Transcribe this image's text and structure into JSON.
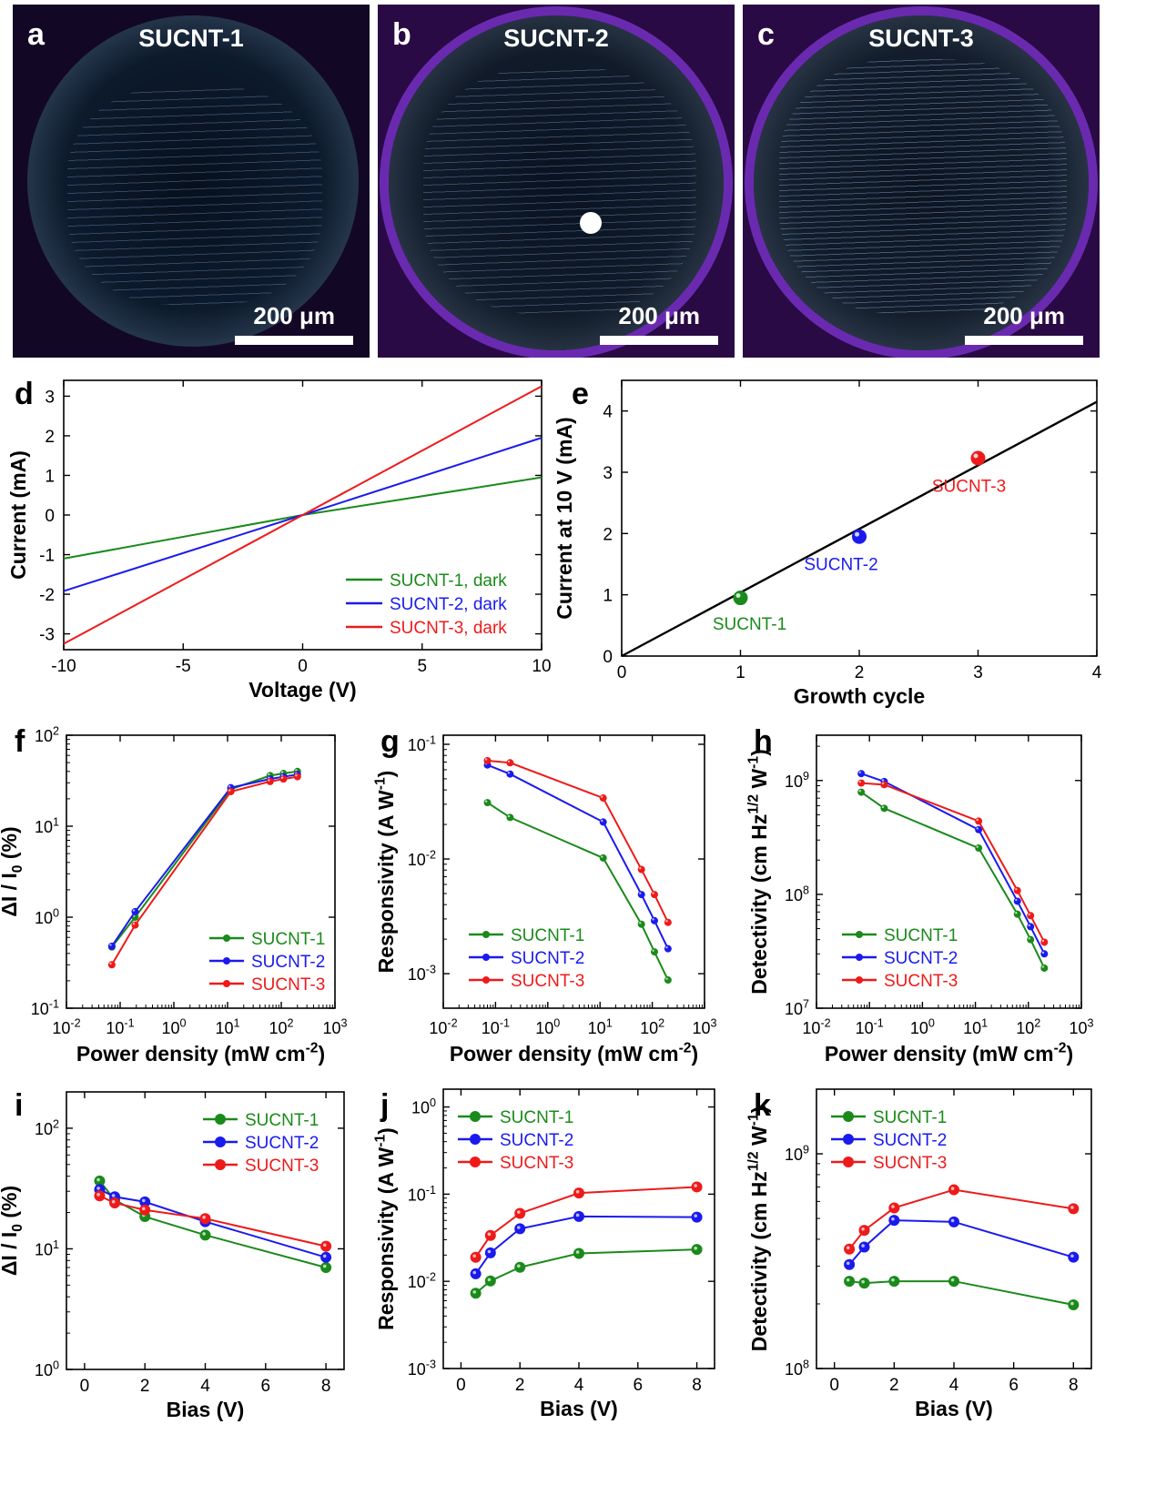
{
  "panel_letters": {
    "a": "a",
    "b": "b",
    "c": "c",
    "d": "d",
    "e": "e",
    "f": "f",
    "g": "g",
    "h": "h",
    "i": "i",
    "j": "j",
    "k": "k"
  },
  "photos": [
    {
      "title": "SUCNT-1",
      "scale": "200 μm"
    },
    {
      "title": "SUCNT-2",
      "scale": "200 μm"
    },
    {
      "title": "SUCNT-3",
      "scale": "200 μm"
    }
  ],
  "colors": {
    "sucnt1": "#1a8a1a",
    "sucnt2": "#1a1aee",
    "sucnt3": "#ee1a1a",
    "fit": "#000000"
  },
  "chart_data": [
    {
      "panel": "d",
      "type": "line",
      "xlabel": "Voltage (V)",
      "ylabel": "Current (mA)",
      "xlim": [
        -10,
        10
      ],
      "ylim": [
        -3.4,
        3.4
      ],
      "xticks": [
        -10,
        -5,
        0,
        5,
        10
      ],
      "yticks": [
        -3,
        -2,
        -1,
        0,
        1,
        2,
        3
      ],
      "legend_position": "bottom-right",
      "series": [
        {
          "name": "SUCNT-1, dark",
          "color": "#1a8a1a",
          "x": [
            -10,
            0,
            10
          ],
          "y": [
            -1.1,
            0,
            0.95
          ]
        },
        {
          "name": "SUCNT-2, dark",
          "color": "#1a1aee",
          "x": [
            -10,
            0,
            10
          ],
          "y": [
            -1.92,
            0,
            1.95
          ]
        },
        {
          "name": "SUCNT-3, dark",
          "color": "#ee1a1a",
          "x": [
            -10,
            0,
            10
          ],
          "y": [
            -3.25,
            0,
            3.25
          ]
        }
      ]
    },
    {
      "panel": "e",
      "type": "scatter",
      "xlabel": "Growth cycle",
      "ylabel": "Current at 10 V (mA)",
      "xlim": [
        0,
        4
      ],
      "ylim": [
        0,
        4.5
      ],
      "xticks": [
        0,
        1,
        2,
        3,
        4
      ],
      "yticks": [
        0,
        1,
        2,
        3,
        4
      ],
      "fit_line": {
        "x": [
          0,
          4
        ],
        "y": [
          0,
          4.15
        ]
      },
      "points": [
        {
          "label": "SUCNT-1",
          "color": "#1a8a1a",
          "x": 1,
          "y": 0.95
        },
        {
          "label": "SUCNT-2",
          "color": "#1a1aee",
          "x": 2,
          "y": 1.95
        },
        {
          "label": "SUCNT-3",
          "color": "#ee1a1a",
          "x": 3,
          "y": 3.23
        }
      ]
    },
    {
      "panel": "f",
      "type": "line",
      "xscale": "log",
      "yscale": "log",
      "xlabel": "Power density (mW cm",
      "xlabel_sup": "-2",
      "xlabel_tail": ")",
      "ylabel": "ΔI / I",
      "ylabel_sub": "0",
      "ylabel_tail": " (%)",
      "xlim": [
        0.01,
        1000
      ],
      "ylim": [
        0.1,
        100
      ],
      "xticks": [
        "10^-2",
        "10^-1",
        "10^0",
        "10^1",
        "10^2",
        "10^3"
      ],
      "yticks": [
        "10^-1",
        "10^0",
        "10^1",
        "10^2"
      ],
      "legend_position": "lower-right",
      "series": [
        {
          "name": "SUCNT-1",
          "color": "#1a8a1a",
          "x": [
            0.07,
            0.19,
            11.5,
            62,
            110,
            200
          ],
          "y": [
            0.47,
            1.0,
            25.5,
            36,
            38,
            40
          ]
        },
        {
          "name": "SUCNT-2",
          "color": "#1a1aee",
          "x": [
            0.07,
            0.19,
            11.5,
            62,
            110,
            200
          ],
          "y": [
            0.48,
            1.15,
            26.5,
            33,
            35,
            37
          ]
        },
        {
          "name": "SUCNT-3",
          "color": "#ee1a1a",
          "x": [
            0.07,
            0.19,
            11.5,
            62,
            110,
            200
          ],
          "y": [
            0.3,
            0.82,
            24,
            31,
            33,
            35
          ]
        }
      ]
    },
    {
      "panel": "g",
      "type": "line",
      "xscale": "log",
      "yscale": "log",
      "xlabel": "Power density (mW cm",
      "xlabel_sup": "-2",
      "xlabel_tail": ")",
      "ylabel": "Responsivity (A W",
      "ylabel_sup": "-1",
      "ylabel_tail": ")",
      "xlim": [
        0.01,
        1000
      ],
      "ylim": [
        0.0005,
        0.12
      ],
      "xticks": [
        "10^-2",
        "10^-1",
        "10^0",
        "10^1",
        "10^2",
        "10^3"
      ],
      "yticks": [
        "10^-3",
        "10^-2",
        "10^-1"
      ],
      "legend_position": "lower-left",
      "series": [
        {
          "name": "SUCNT-1",
          "color": "#1a8a1a",
          "x": [
            0.07,
            0.19,
            11.5,
            62,
            110,
            200
          ],
          "y": [
            0.031,
            0.023,
            0.0102,
            0.0027,
            0.00155,
            0.00088
          ]
        },
        {
          "name": "SUCNT-2",
          "color": "#1a1aee",
          "x": [
            0.07,
            0.19,
            11.5,
            62,
            110,
            200
          ],
          "y": [
            0.066,
            0.055,
            0.021,
            0.0049,
            0.0029,
            0.00165
          ]
        },
        {
          "name": "SUCNT-3",
          "color": "#ee1a1a",
          "x": [
            0.07,
            0.19,
            11.5,
            62,
            110,
            200
          ],
          "y": [
            0.072,
            0.069,
            0.034,
            0.0081,
            0.0049,
            0.0028
          ]
        }
      ]
    },
    {
      "panel": "h",
      "type": "line",
      "xscale": "log",
      "yscale": "log",
      "xlabel": "Power density (mW cm",
      "xlabel_sup": "-2",
      "xlabel_tail": ")",
      "ylabel": "Detectivity (cm Hz",
      "ylabel_sup": "1/2",
      "ylabel_mid": " W",
      "ylabel_sup2": "-1",
      "ylabel_tail": ")",
      "xlim": [
        0.01,
        1000
      ],
      "ylim": [
        10000000,
        2500000000
      ],
      "xticks": [
        "10^-2",
        "10^-1",
        "10^0",
        "10^1",
        "10^2",
        "10^3"
      ],
      "yticks": [
        "10^7",
        "10^8",
        "10^9"
      ],
      "legend_position": "lower-left",
      "series": [
        {
          "name": "SUCNT-1",
          "color": "#1a8a1a",
          "x": [
            0.07,
            0.19,
            11.5,
            62,
            110,
            200
          ],
          "y": [
            790000000,
            570000000,
            255000000,
            67000000,
            40000000,
            22500000
          ]
        },
        {
          "name": "SUCNT-2",
          "color": "#1a1aee",
          "x": [
            0.07,
            0.19,
            11.5,
            62,
            110,
            200
          ],
          "y": [
            1150000000,
            980000000,
            370000000,
            87000000,
            52000000,
            30000000
          ]
        },
        {
          "name": "SUCNT-3",
          "color": "#ee1a1a",
          "x": [
            0.07,
            0.19,
            11.5,
            62,
            110,
            200
          ],
          "y": [
            950000000,
            920000000,
            440000000,
            108000000,
            65000000,
            38000000
          ]
        }
      ]
    },
    {
      "panel": "i",
      "type": "line",
      "yscale": "log",
      "xlabel": "Bias (V)",
      "ylabel": "ΔI / I",
      "ylabel_sub": "0",
      "ylabel_tail": " (%)",
      "xlim": [
        -0.6,
        8.6
      ],
      "ylim": [
        1,
        200
      ],
      "xticks": [
        0,
        2,
        4,
        6,
        8
      ],
      "yticks": [
        "10^0",
        "10^1",
        "10^2"
      ],
      "legend_position": "top-right",
      "series": [
        {
          "name": "SUCNT-1",
          "color": "#1a8a1a",
          "x": [
            0.5,
            1,
            2,
            4,
            8
          ],
          "y": [
            36.5,
            25.5,
            18.5,
            13,
            7
          ]
        },
        {
          "name": "SUCNT-2",
          "color": "#1a1aee",
          "x": [
            0.5,
            1,
            2,
            4,
            8
          ],
          "y": [
            31,
            27,
            24.5,
            16.8,
            8.5
          ]
        },
        {
          "name": "SUCNT-3",
          "color": "#ee1a1a",
          "x": [
            0.5,
            1,
            2,
            4,
            8
          ],
          "y": [
            27.5,
            24,
            21,
            17.8,
            10.5
          ]
        }
      ]
    },
    {
      "panel": "j",
      "type": "line",
      "yscale": "log",
      "xlabel": "Bias (V)",
      "ylabel": "Responsivity (A W",
      "ylabel_sup": "-1",
      "ylabel_tail": ")",
      "xlim": [
        -0.6,
        8.6
      ],
      "ylim": [
        0.001,
        1.6
      ],
      "xticks": [
        0,
        2,
        4,
        6,
        8
      ],
      "yticks": [
        "10^-3",
        "10^-2",
        "10^-1",
        "10^0"
      ],
      "legend_position": "top-left",
      "series": [
        {
          "name": "SUCNT-1",
          "color": "#1a8a1a",
          "x": [
            0.5,
            1,
            2,
            4,
            8
          ],
          "y": [
            0.0073,
            0.0101,
            0.0145,
            0.0209,
            0.0232
          ]
        },
        {
          "name": "SUCNT-2",
          "color": "#1a1aee",
          "x": [
            0.5,
            1,
            2,
            4,
            8
          ],
          "y": [
            0.0122,
            0.0212,
            0.0401,
            0.0555,
            0.0545
          ]
        },
        {
          "name": "SUCNT-3",
          "color": "#ee1a1a",
          "x": [
            0.5,
            1,
            2,
            4,
            8
          ],
          "y": [
            0.0189,
            0.0336,
            0.0602,
            0.103,
            0.121
          ]
        }
      ]
    },
    {
      "panel": "k",
      "type": "line",
      "yscale": "log",
      "xlabel": "Bias (V)",
      "ylabel": "Detectivity (cm Hz",
      "ylabel_sup": "1/2",
      "ylabel_mid": " W",
      "ylabel_sup2": "-1",
      "ylabel_tail": ")",
      "xlim": [
        -0.6,
        8.6
      ],
      "ylim": [
        100000000,
        2000000000
      ],
      "xticks": [
        0,
        2,
        4,
        6,
        8
      ],
      "yticks": [
        "10^8",
        "10^9"
      ],
      "legend_position": "top-left",
      "series": [
        {
          "name": "SUCNT-1",
          "color": "#1a8a1a",
          "x": [
            0.5,
            1,
            2,
            4,
            8
          ],
          "y": [
            255000000,
            250000000,
            255000000,
            255000000,
            198000000
          ]
        },
        {
          "name": "SUCNT-2",
          "color": "#1a1aee",
          "x": [
            0.5,
            1,
            2,
            4,
            8
          ],
          "y": [
            305000000,
            368000000,
            490000000,
            482000000,
            330000000
          ]
        },
        {
          "name": "SUCNT-3",
          "color": "#ee1a1a",
          "x": [
            0.5,
            1,
            2,
            4,
            8
          ],
          "y": [
            360000000,
            440000000,
            560000000,
            680000000,
            555000000
          ]
        }
      ]
    }
  ]
}
